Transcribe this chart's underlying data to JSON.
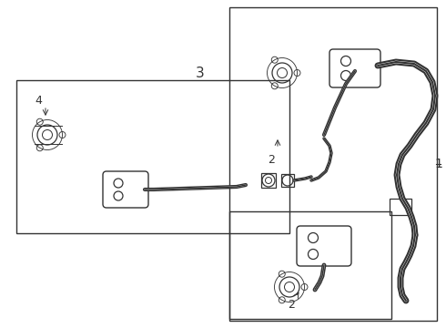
{
  "bg_color": "#ffffff",
  "lc": "#333333",
  "fig_width": 4.9,
  "fig_height": 3.6,
  "dpi": 100
}
